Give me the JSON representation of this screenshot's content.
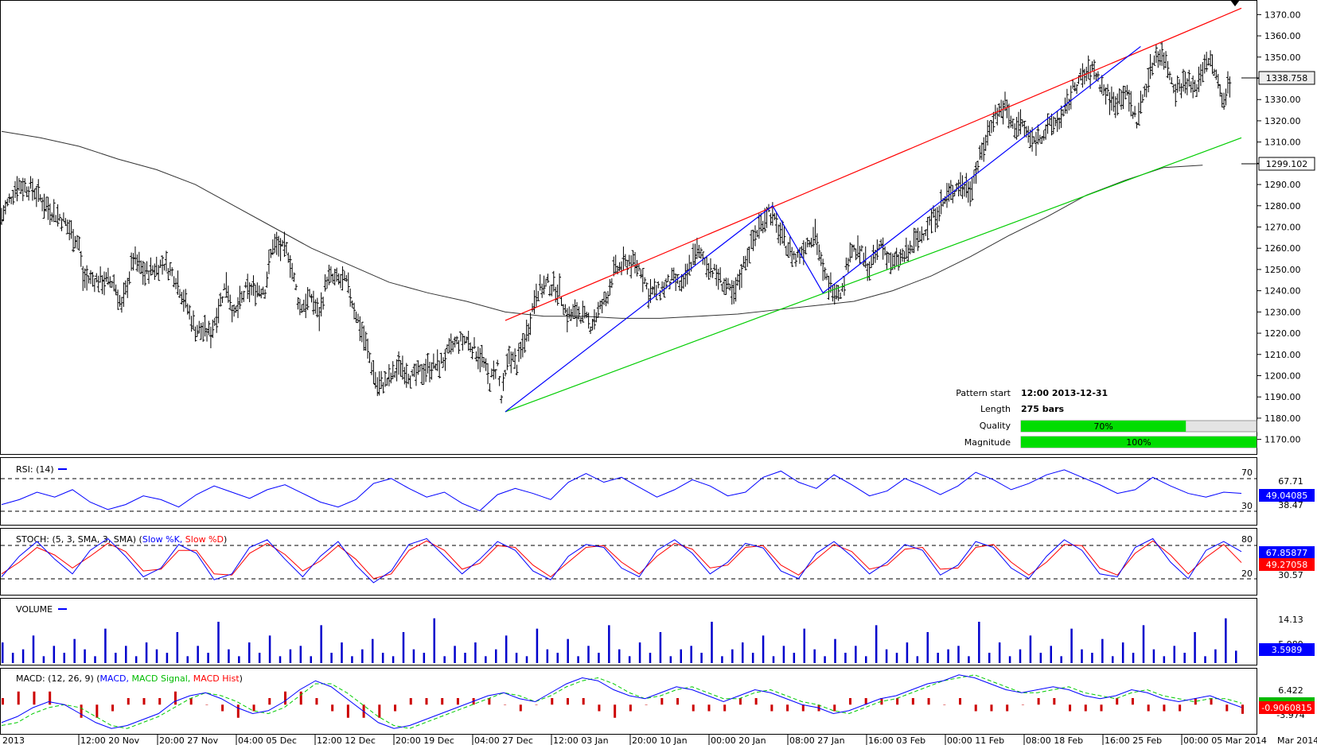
{
  "colors": {
    "price_bar": "#000000",
    "ma_line": "#333333",
    "resistance_line": "#ff0000",
    "support_line": "#00cc00",
    "zigzag": "#0000ff",
    "rsi": "#0000ff",
    "stoch_k": "#0000ff",
    "stoch_d": "#ff0000",
    "volume": "#0000cc",
    "macd": "#0000ff",
    "macd_signal": "#00cc00",
    "macd_hist": "#cc0000",
    "bar_fill": "#00dd00",
    "badge_blue": "#0000ff",
    "badge_red": "#ff0000"
  },
  "pattern_info": {
    "start_label": "Pattern start",
    "start_value": "12:00 2013-12-31",
    "length_label": "Length",
    "length_value": "275 bars",
    "quality_label": "Quality",
    "quality_text": "70%",
    "quality_value": 0.7,
    "magnitude_label": "Magnitude",
    "magnitude_text": "100%",
    "magnitude_value": 1.0
  },
  "price_badges": {
    "last": "1338.758",
    "ma": "1299.102"
  },
  "rsi": {
    "title": "RSI: (14)",
    "level_high": "70",
    "level_low": "30",
    "axis_top": "67.71",
    "axis_bottom": "38.47",
    "badge": "49.04085"
  },
  "stoch": {
    "title_prefix": "STOCH: (5, 3, SMA, 3, SMA)",
    "k_label": "Slow %K,",
    "d_label": "Slow %D",
    "level_high": "80",
    "level_low": "20",
    "axis_low": "30.57",
    "badge_k": "67.85877",
    "badge_d": "49.27058"
  },
  "volume": {
    "title": "VOLUME",
    "axis_top": "14.13",
    "axis_mid": "5.989",
    "badge": "3.5989"
  },
  "macd": {
    "title_prefix": "MACD: (12, 26, 9)",
    "macd_label": "MACD,",
    "signal_label": "MACD Signal,",
    "hist_label": "MACD Hist",
    "axis_top": "6.422",
    "axis_bottom": "-3.974",
    "badge": "-0.9060815"
  },
  "chart_data": [
    {
      "type": "ohlc",
      "ylim": [
        1165,
        1375
      ],
      "yticks": [
        1170,
        1180,
        1190,
        1200,
        1210,
        1220,
        1230,
        1240,
        1250,
        1260,
        1270,
        1280,
        1290,
        1300,
        1310,
        1320,
        1330,
        1340,
        1350,
        1360,
        1370
      ],
      "ytick_labels": [
        "1170.00",
        "1180.00",
        "1190.00",
        "1200.00",
        "1210.00",
        "1220.00",
        "1230.00",
        "1240.00",
        "1250.00",
        "1260.00",
        "1270.00",
        "1280.00",
        "1290.00",
        "1300.00",
        "1310.00",
        "1320.00",
        "1330.00",
        "1340.00",
        "1350.00",
        "1360.00",
        "1370.00"
      ],
      "x_labels": [
        "2013",
        "12:00 20 Nov",
        "20:00 27 Nov",
        "04:00 05 Dec",
        "12:00 12 Dec",
        "20:00 19 Dec",
        "04:00 27 Dec",
        "12:00 03 Jan",
        "20:00 10 Jan",
        "00:00 20 Jan",
        "08:00 27 Jan",
        "16:00 03 Feb",
        "00:00 11 Feb",
        "08:00 18 Feb",
        "16:00 25 Feb",
        "00:00 05 Mar 2014",
        "Mar 2014"
      ],
      "price_path": [
        [
          0,
          1275
        ],
        [
          4,
          1290
        ],
        [
          8,
          1288
        ],
        [
          12,
          1279
        ],
        [
          16,
          1273
        ],
        [
          20,
          1262
        ],
        [
          21,
          1246
        ],
        [
          25,
          1245
        ],
        [
          29,
          1244
        ],
        [
          31,
          1232
        ],
        [
          34,
          1255
        ],
        [
          37,
          1248
        ],
        [
          42,
          1253
        ],
        [
          45,
          1246
        ],
        [
          50,
          1222
        ],
        [
          54,
          1220
        ],
        [
          58,
          1244
        ],
        [
          60,
          1228
        ],
        [
          63,
          1240
        ],
        [
          68,
          1241
        ],
        [
          70,
          1262
        ],
        [
          74,
          1258
        ],
        [
          77,
          1232
        ],
        [
          80,
          1237
        ],
        [
          82,
          1228
        ],
        [
          84,
          1246
        ],
        [
          89,
          1244
        ],
        [
          91,
          1232
        ],
        [
          94,
          1215
        ],
        [
          97,
          1195
        ],
        [
          100,
          1198
        ],
        [
          103,
          1205
        ],
        [
          106,
          1199
        ],
        [
          110,
          1204
        ],
        [
          113,
          1205
        ],
        [
          117,
          1215
        ],
        [
          120,
          1217
        ],
        [
          124,
          1208
        ],
        [
          126,
          1197
        ],
        [
          128,
          1205
        ],
        [
          129,
          1189
        ],
        [
          131,
          1210
        ],
        [
          133,
          1205
        ],
        [
          136,
          1223
        ],
        [
          138,
          1240
        ],
        [
          141,
          1243
        ],
        [
          144,
          1240
        ],
        [
          146,
          1228
        ],
        [
          149,
          1230
        ],
        [
          152,
          1224
        ],
        [
          156,
          1236
        ],
        [
          158,
          1249
        ],
        [
          162,
          1254
        ],
        [
          165,
          1250
        ],
        [
          167,
          1239
        ],
        [
          170,
          1240
        ],
        [
          173,
          1245
        ],
        [
          176,
          1242
        ],
        [
          179,
          1259
        ],
        [
          182,
          1253
        ],
        [
          186,
          1244
        ],
        [
          189,
          1237
        ],
        [
          192,
          1255
        ],
        [
          195,
          1268
        ],
        [
          198,
          1278
        ],
        [
          202,
          1263
        ],
        [
          205,
          1255
        ],
        [
          208,
          1263
        ],
        [
          210,
          1268
        ],
        [
          212,
          1248
        ],
        [
          214,
          1242
        ],
        [
          217,
          1240
        ],
        [
          219,
          1260
        ],
        [
          222,
          1257
        ],
        [
          224,
          1250
        ],
        [
          227,
          1262
        ],
        [
          230,
          1252
        ],
        [
          234,
          1258
        ],
        [
          238,
          1268
        ],
        [
          241,
          1276
        ],
        [
          244,
          1284
        ],
        [
          247,
          1290
        ],
        [
          250,
          1288
        ],
        [
          253,
          1305
        ],
        [
          256,
          1322
        ],
        [
          259,
          1327
        ],
        [
          261,
          1317
        ],
        [
          263,
          1319
        ],
        [
          266,
          1310
        ],
        [
          268,
          1313
        ],
        [
          271,
          1318
        ],
        [
          274,
          1322
        ],
        [
          277,
          1337
        ],
        [
          280,
          1342
        ],
        [
          282,
          1344
        ],
        [
          284,
          1336
        ],
        [
          287,
          1328
        ],
        [
          290,
          1334
        ],
        [
          293,
          1320
        ],
        [
          295,
          1334
        ],
        [
          298,
          1352
        ],
        [
          300,
          1350
        ],
        [
          303,
          1335
        ],
        [
          306,
          1339
        ],
        [
          308,
          1334
        ],
        [
          311,
          1350
        ],
        [
          313,
          1344
        ],
        [
          315,
          1330
        ],
        [
          317,
          1338
        ]
      ],
      "moving_average": [
        [
          0,
          1315
        ],
        [
          10,
          1312
        ],
        [
          20,
          1308
        ],
        [
          30,
          1302
        ],
        [
          40,
          1297
        ],
        [
          50,
          1290
        ],
        [
          60,
          1280
        ],
        [
          70,
          1270
        ],
        [
          80,
          1260
        ],
        [
          90,
          1252
        ],
        [
          100,
          1244
        ],
        [
          110,
          1239
        ],
        [
          120,
          1235
        ],
        [
          130,
          1230
        ],
        [
          140,
          1228
        ],
        [
          150,
          1228
        ],
        [
          160,
          1227
        ],
        [
          170,
          1227
        ],
        [
          180,
          1228
        ],
        [
          190,
          1229
        ],
        [
          200,
          1231
        ],
        [
          210,
          1233
        ],
        [
          220,
          1235
        ],
        [
          230,
          1240
        ],
        [
          240,
          1247
        ],
        [
          250,
          1256
        ],
        [
          260,
          1266
        ],
        [
          270,
          1275
        ],
        [
          280,
          1285
        ],
        [
          290,
          1292
        ],
        [
          300,
          1298
        ],
        [
          310,
          1299.1
        ]
      ],
      "resistance_line": [
        [
          130,
          1226
        ],
        [
          320,
          1373
        ]
      ],
      "support_line": [
        [
          130,
          1183
        ],
        [
          320,
          1312
        ]
      ],
      "zigzag": [
        [
          130,
          1183
        ],
        [
          199,
          1280
        ],
        [
          212,
          1239
        ],
        [
          294,
          1355
        ]
      ]
    },
    {
      "type": "line",
      "panel": "RSI",
      "levels": [
        70,
        30
      ],
      "ylim": [
        25,
        75
      ],
      "values": [
        40,
        44,
        50,
        46,
        52,
        42,
        36,
        40,
        47,
        44,
        38,
        48,
        55,
        50,
        45,
        52,
        56,
        49,
        42,
        38,
        44,
        57,
        61,
        53,
        46,
        50,
        41,
        35,
        48,
        53,
        49,
        44,
        58,
        65,
        58,
        62,
        54,
        46,
        52,
        60,
        55,
        47,
        50,
        62,
        67,
        58,
        53,
        64,
        56,
        47,
        51,
        61,
        55,
        48,
        55,
        66,
        60,
        52,
        57,
        64,
        68,
        62,
        56,
        49,
        52,
        62,
        55,
        49,
        46,
        50,
        49
      ]
    },
    {
      "type": "line",
      "panel": "STOCH",
      "levels": [
        80,
        20
      ],
      "ylim": [
        0,
        100
      ],
      "k_values": [
        25,
        60,
        85,
        55,
        30,
        70,
        90,
        60,
        25,
        40,
        80,
        65,
        20,
        30,
        75,
        88,
        55,
        25,
        60,
        85,
        45,
        15,
        35,
        80,
        90,
        60,
        30,
        55,
        85,
        70,
        35,
        20,
        60,
        80,
        75,
        40,
        25,
        70,
        88,
        65,
        30,
        50,
        82,
        74,
        35,
        22,
        65,
        85,
        60,
        30,
        50,
        80,
        70,
        28,
        45,
        85,
        75,
        40,
        22,
        60,
        88,
        70,
        30,
        25,
        75,
        90,
        50,
        22,
        70,
        85,
        67.86
      ],
      "d_values": [
        30,
        50,
        75,
        62,
        40,
        60,
        82,
        68,
        35,
        38,
        70,
        70,
        30,
        28,
        65,
        82,
        63,
        35,
        52,
        78,
        55,
        22,
        30,
        70,
        86,
        70,
        38,
        48,
        78,
        75,
        45,
        25,
        50,
        75,
        78,
        50,
        30,
        60,
        82,
        72,
        40,
        45,
        75,
        78,
        45,
        28,
        55,
        80,
        68,
        38,
        45,
        72,
        75,
        38,
        40,
        75,
        80,
        50,
        28,
        50,
        80,
        78,
        40,
        28,
        65,
        86,
        62,
        30,
        58,
        80,
        49.27
      ]
    },
    {
      "type": "bar",
      "panel": "VOLUME",
      "ylim": [
        0,
        18
      ],
      "values": [
        6,
        3,
        4,
        8,
        2,
        5,
        3,
        7,
        4,
        2,
        10,
        3,
        5,
        2,
        6,
        4,
        3,
        9,
        2,
        5,
        3,
        12,
        4,
        2,
        6,
        3,
        8,
        2,
        4,
        5,
        2,
        11,
        3,
        6,
        2,
        4,
        7,
        3,
        2,
        9,
        4,
        3,
        13,
        2,
        5,
        3,
        6,
        2,
        4,
        8,
        3,
        2,
        10,
        4,
        3,
        7,
        2,
        5,
        3,
        11,
        4,
        2,
        6,
        3,
        9,
        2,
        4,
        5,
        3,
        12,
        2,
        4,
        6,
        3,
        8,
        2,
        5,
        3,
        10,
        4,
        2,
        7,
        3,
        5,
        2,
        11,
        4,
        3,
        6,
        2,
        9,
        3,
        4,
        5,
        2,
        12,
        3,
        6,
        2,
        4,
        8,
        3,
        5,
        2,
        10,
        4,
        3,
        7,
        2,
        6,
        3,
        11,
        4,
        2,
        5,
        3,
        9,
        2,
        4,
        13,
        3.6
      ]
    },
    {
      "type": "line",
      "panel": "MACD",
      "ylim": [
        -9,
        11
      ],
      "macd_values": [
        -6,
        -4,
        -1,
        1,
        0,
        -3,
        -6,
        -8,
        -7,
        -5,
        -3,
        1,
        3,
        4,
        2,
        -1,
        -3,
        -2,
        1,
        5,
        8,
        6,
        2,
        -2,
        -6,
        -8,
        -7,
        -5,
        -3,
        -1,
        1,
        3,
        4,
        2,
        1,
        4,
        7,
        9,
        8,
        5,
        3,
        2,
        4,
        6,
        5,
        3,
        1,
        3,
        5,
        4,
        2,
        0,
        -1,
        -3,
        -2,
        0,
        2,
        3,
        5,
        7,
        8,
        10,
        9,
        7,
        5,
        4,
        5,
        6,
        5,
        3,
        2,
        3,
        5,
        4,
        2,
        1,
        2,
        3,
        1,
        -0.9
      ],
      "signal_values": [
        -7,
        -6,
        -3,
        -1,
        0,
        -1,
        -4,
        -7,
        -8,
        -6,
        -4,
        -1,
        2,
        4,
        3,
        1,
        -2,
        -3,
        -1,
        3,
        7,
        7,
        4,
        0,
        -4,
        -7,
        -8,
        -6,
        -4,
        -2,
        0,
        2,
        4,
        3,
        1,
        3,
        6,
        8,
        9,
        7,
        4,
        2,
        3,
        5,
        6,
        4,
        2,
        2,
        4,
        5,
        3,
        1,
        0,
        -2,
        -3,
        -1,
        1,
        2,
        4,
        6,
        8,
        9,
        10,
        8,
        6,
        4,
        4,
        5,
        6,
        4,
        3,
        2,
        4,
        5,
        3,
        2,
        1,
        2,
        2,
        0.5
      ]
    }
  ]
}
